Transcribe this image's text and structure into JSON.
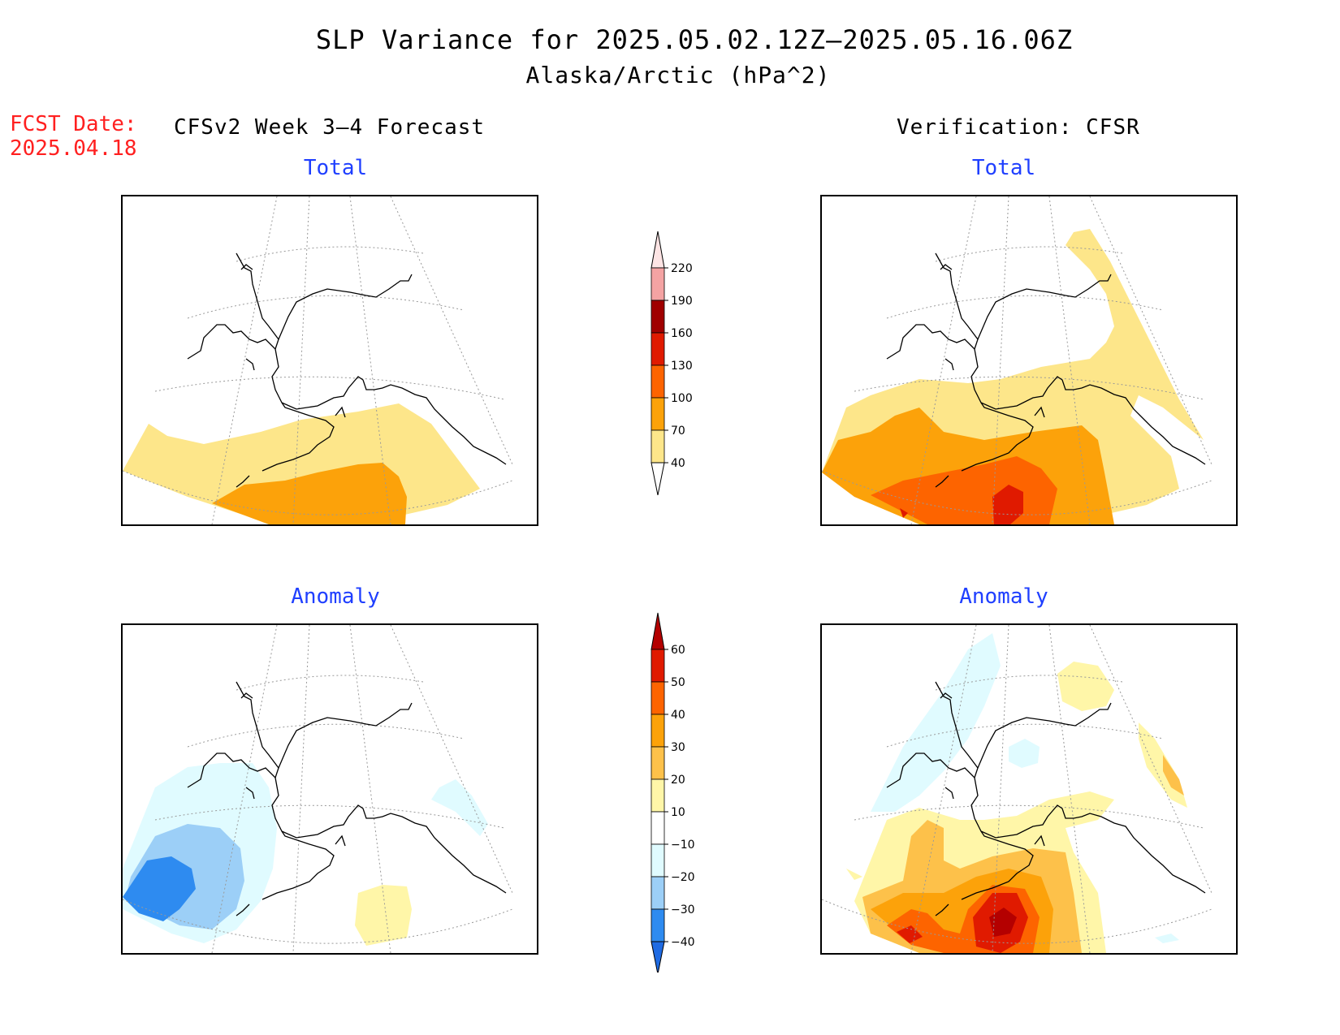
{
  "title": "SLP Variance for 2025.05.02.12Z–2025.05.16.06Z",
  "subtitle": "Alaska/Arctic (hPa^2)",
  "fcst_label": "FCST Date:",
  "fcst_date": "2025.04.18",
  "left_heading": "CFSv2 Week 3–4 Forecast",
  "right_heading": "Verification: CFSR",
  "panels": {
    "top_left_label": "Total",
    "top_right_label": "Total",
    "bottom_left_label": "Anomaly",
    "bottom_right_label": "Anomaly"
  },
  "colorbars": {
    "total": {
      "ticks": [
        "40",
        "70",
        "100",
        "130",
        "160",
        "190",
        "220"
      ],
      "colors": [
        "#fde68a",
        "#fca20a",
        "#fd6400",
        "#e01a00",
        "#a00000",
        "#f4a3a3",
        "#fde4e4"
      ]
    },
    "anomaly": {
      "ticks": [
        "−40",
        "−30",
        "−20",
        "−10",
        "10",
        "20",
        "30",
        "40",
        "50",
        "60"
      ],
      "colors": [
        "#1f6be3",
        "#2e8bf0",
        "#9ccff7",
        "#e0fbff",
        "#ffffff",
        "#fff6a8",
        "#fdc14a",
        "#fca20a",
        "#fd6400",
        "#e01a00",
        "#b40000"
      ]
    }
  }
}
